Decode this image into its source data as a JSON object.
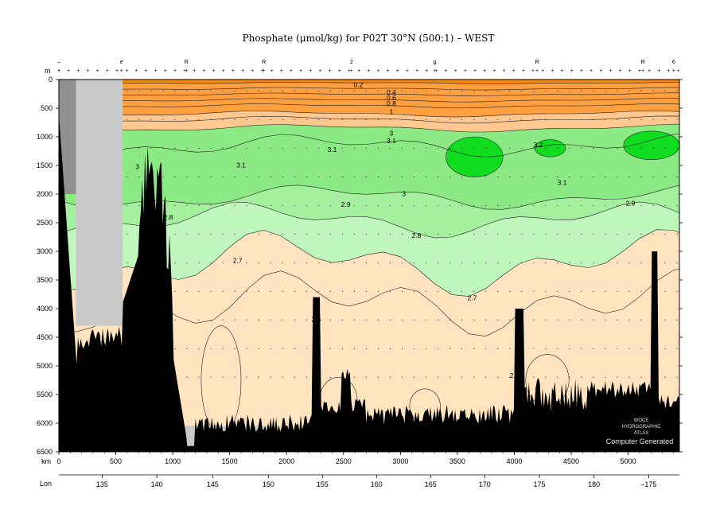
{
  "chart_data": {
    "type": "heatmap",
    "title": "Phosphate (μmol/kg) for P02T 30°N (500:1) – WEST",
    "y_unit": "m",
    "x_unit": "km",
    "lon_label": "Lon",
    "y_ticks": [
      0,
      500,
      1000,
      1500,
      2000,
      2500,
      3000,
      3500,
      4000,
      4500,
      5000,
      5500,
      6000,
      6500
    ],
    "ylim": [
      0,
      6500
    ],
    "x_ticks": [
      0,
      500,
      1000,
      1500,
      2000,
      2500,
      3000,
      3500,
      4000,
      4500,
      5000
    ],
    "xlim": [
      0,
      5450
    ],
    "lon_ticks": [
      {
        "lon": "135",
        "km": 380
      },
      {
        "lon": "140",
        "km": 860
      },
      {
        "lon": "145",
        "km": 1350
      },
      {
        "lon": "150",
        "km": 1840
      },
      {
        "lon": "155",
        "km": 2315
      },
      {
        "lon": "160",
        "km": 2790
      },
      {
        "lon": "165",
        "km": 3265
      },
      {
        "lon": "170",
        "km": 3740
      },
      {
        "lon": "175",
        "km": 4220
      },
      {
        "lon": "180",
        "km": 4700
      },
      {
        "lon": "–175",
        "km": 5180
      }
    ],
    "top_station_labels": [
      {
        "text": "–",
        "km": 0
      },
      {
        "text": "e",
        "km": 550
      },
      {
        "text": "R",
        "km": 1120
      },
      {
        "text": "R",
        "km": 1800
      },
      {
        "text": "2",
        "km": 2570
      },
      {
        "text": "g",
        "km": 3300
      },
      {
        "text": "R",
        "km": 4200
      },
      {
        "text": "R",
        "km": 5130
      },
      {
        "text": "6",
        "km": 5400
      }
    ],
    "contour_labels": [
      {
        "text": "0.2",
        "km": 2630,
        "depth": 90
      },
      {
        "text": "0.4",
        "km": 2920,
        "depth": 220
      },
      {
        "text": "0.6",
        "km": 2920,
        "depth": 320
      },
      {
        "text": "0.8",
        "km": 2920,
        "depth": 420
      },
      {
        "text": "1",
        "km": 2920,
        "depth": 560
      },
      {
        "text": "3.1",
        "km": 2920,
        "depth": 1070
      },
      {
        "text": "3",
        "km": 2920,
        "depth": 940
      },
      {
        "text": "3.1",
        "km": 2400,
        "depth": 1220
      },
      {
        "text": "3.2",
        "km": 4210,
        "depth": 1140
      },
      {
        "text": "3.1",
        "km": 1600,
        "depth": 1490
      },
      {
        "text": "3",
        "km": 690,
        "depth": 1520
      },
      {
        "text": "3.1",
        "km": 4420,
        "depth": 1800
      },
      {
        "text": "3",
        "km": 3030,
        "depth": 1990
      },
      {
        "text": "2.9",
        "km": 2520,
        "depth": 2180
      },
      {
        "text": "2.9",
        "km": 5020,
        "depth": 2160
      },
      {
        "text": "2.8",
        "km": 960,
        "depth": 2400
      },
      {
        "text": "2.8",
        "km": 3140,
        "depth": 2720
      },
      {
        "text": "2.7",
        "km": 1570,
        "depth": 3160
      },
      {
        "text": "2.7",
        "km": 3630,
        "depth": 3810
      },
      {
        "text": "2.6",
        "km": 640,
        "depth": 3900
      },
      {
        "text": "2.6",
        "km": 2260,
        "depth": 4190
      },
      {
        "text": "2.6",
        "km": 4000,
        "depth": 5170
      }
    ],
    "color_levels": [
      {
        "from": 0.0,
        "to": 0.2,
        "color": "#ff8800"
      },
      {
        "from": 0.2,
        "to": 1.0,
        "color": "#ffa040"
      },
      {
        "from": 1.0,
        "to": 2.0,
        "color": "#ffc890"
      },
      {
        "from": 2.0,
        "to": 2.6,
        "color": "#ffe4bf"
      },
      {
        "from": 2.6,
        "to": 2.8,
        "color": "#bff7bd"
      },
      {
        "from": 2.8,
        "to": 2.9,
        "color": "#a4f09f"
      },
      {
        "from": 2.9,
        "to": 3.0,
        "color": "#8bea83"
      },
      {
        "from": 3.0,
        "to": 3.1,
        "color": "#6ee568"
      },
      {
        "from": 3.1,
        "to": 3.2,
        "color": "#59d957"
      },
      {
        "from": 3.2,
        "to": 3.3,
        "color": "#10dd20"
      }
    ],
    "grid": false,
    "legend": "none"
  },
  "watermark": {
    "line1": "WOCE",
    "line2": "HYDROGRAPHIC",
    "line3": "ATLAS",
    "line4": "Computer Generated"
  }
}
